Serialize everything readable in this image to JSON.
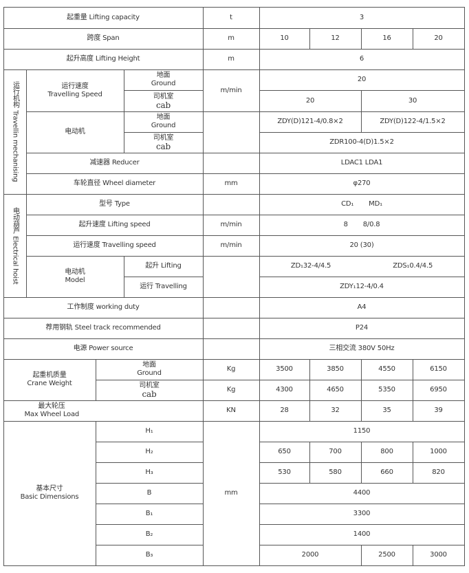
{
  "rows": {
    "lifting_capacity": {
      "label": "起重量 Lifting capacity",
      "unit": "t",
      "value": "3"
    },
    "span": {
      "label": "跨度 Span",
      "unit": "m",
      "values": [
        "10",
        "12",
        "16",
        "20"
      ]
    },
    "lifting_height": {
      "label": "起升高度 Lifting Height",
      "unit": "m",
      "value": "6"
    },
    "travelling_mechanism": {
      "section_label": "运行机构 Travellin mechanising",
      "speed": {
        "label_cn": "运行速度",
        "label_en": "Travelling Speed",
        "unit": "m/min",
        "ground": {
          "cn": "地面",
          "en": "Ground",
          "value": "20"
        },
        "cab": {
          "cn": "司机室",
          "en": "cab",
          "values": [
            "20",
            "30"
          ]
        }
      },
      "motor": {
        "label": "电动机",
        "ground": {
          "cn": "地面",
          "en": "Ground",
          "values": [
            "ZDY(D)121-4/0.8×2",
            "ZDY(D)122-4/1.5×2"
          ]
        },
        "cab": {
          "cn": "司机室",
          "en": "cab",
          "value": "ZDR100-4(D)1.5×2"
        }
      },
      "reducer": {
        "label": "减速器 Reducer",
        "value": "LDAC1  LDA1"
      },
      "wheel_diameter": {
        "label": "车轮直径 Wheel diameter",
        "unit": "mm",
        "value": "φ270"
      }
    },
    "electrical_hoist": {
      "section_label": "电动葫芦 Electrical hoist",
      "type": {
        "label": "型号 Type",
        "values": [
          "CD₁",
          "MD₁"
        ]
      },
      "lifting_speed": {
        "label": "起升速度 Lifting speed",
        "unit": "m/min",
        "values": [
          "8",
          "8/0.8"
        ]
      },
      "travelling_speed": {
        "label": "运行速度 Travelling speed",
        "unit": "m/min",
        "value": "20 (30)"
      },
      "motor": {
        "label_cn": "电动机",
        "label_en": "Model",
        "lifting": {
          "label": "起升 Lifting",
          "values": [
            "ZD₁32-4/4.5",
            "ZDS₁0.4/4.5"
          ]
        },
        "travelling": {
          "label": "运行 Travelling",
          "value": "ZDY₁12-4/0.4"
        }
      }
    },
    "working_duty": {
      "label": "工作制度 working duty",
      "value": "A4"
    },
    "steel_track": {
      "label": "荐用钢轨 Steel track recommended",
      "value": "P24"
    },
    "power_source": {
      "label": "电源 Power source",
      "value": "三相交流  380V  50Hz"
    },
    "crane_weight": {
      "label_cn": "起重机质量",
      "label_en": "Crane Weight",
      "ground": {
        "cn": "地面",
        "en": "Ground",
        "unit": "Kg",
        "values": [
          "3500",
          "3850",
          "4550",
          "6150"
        ]
      },
      "cab": {
        "cn": "司机室",
        "en": "cab",
        "unit": "Kg",
        "values": [
          "4300",
          "4650",
          "5350",
          "6950"
        ]
      }
    },
    "max_wheel_load": {
      "label_cn": "最大轮压",
      "label_en": "Max Wheel Load",
      "unit": "KN",
      "values": [
        "28",
        "32",
        "35",
        "39"
      ]
    },
    "basic_dimensions": {
      "label_cn": "基本尺寸",
      "label_en": "Basic Dimensions",
      "unit": "mm",
      "H1": {
        "label": "H₁",
        "value": "1150"
      },
      "H2": {
        "label": "H₂",
        "values": [
          "650",
          "700",
          "800",
          "1000"
        ]
      },
      "H3": {
        "label": "H₃",
        "values": [
          "530",
          "580",
          "660",
          "820"
        ]
      },
      "B": {
        "label": "B",
        "value": "4400"
      },
      "B1": {
        "label": "B₁",
        "value": "3300"
      },
      "B2": {
        "label": "B₂",
        "value": "1400"
      },
      "B3": {
        "label": "B₃",
        "values": [
          "2000",
          "2500",
          "3000"
        ]
      }
    }
  }
}
